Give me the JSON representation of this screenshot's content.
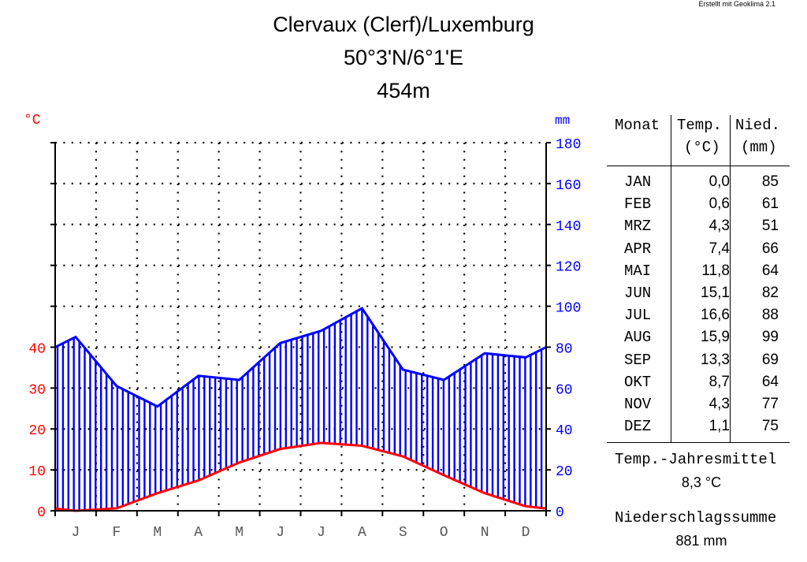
{
  "credit": "Erstellt mit Geoklima 2.1",
  "title": {
    "line1": "Clervaux (Clerf)/Luxemburg",
    "line2": "50°3'N/6°1'E",
    "line3": "454m"
  },
  "chart_data": {
    "type": "line",
    "left_unit": "°C",
    "right_unit": "mm",
    "categories": [
      "J",
      "F",
      "M",
      "A",
      "M",
      "J",
      "J",
      "A",
      "S",
      "O",
      "N",
      "D"
    ],
    "left_ticks": [
      0,
      10,
      20,
      30,
      40
    ],
    "right_ticks": [
      0,
      20,
      40,
      60,
      80,
      100,
      120,
      140,
      160,
      180
    ],
    "left_range": [
      0,
      40
    ],
    "right_range": [
      0,
      180
    ],
    "series": [
      {
        "values": [
          0.0,
          0.6,
          4.3,
          7.4,
          11.8,
          15.1,
          16.6,
          15.9,
          13.3,
          8.7,
          4.3,
          1.1
        ],
        "color": "#ff0000"
      },
      {
        "values": [
          85,
          61,
          51,
          66,
          64,
          82,
          88,
          99,
          69,
          64,
          77,
          75
        ],
        "color": "#0000ff"
      }
    ],
    "grid": true
  },
  "table": {
    "headers": {
      "month": "Monat",
      "temp": "Temp.",
      "precip": "Nied.",
      "temp_unit": "(°C)",
      "precip_unit": "(mm)"
    },
    "rows": [
      {
        "month": "JAN",
        "temp": "0,0",
        "precip": "85"
      },
      {
        "month": "FEB",
        "temp": "0,6",
        "precip": "61"
      },
      {
        "month": "MRZ",
        "temp": "4,3",
        "precip": "51"
      },
      {
        "month": "APR",
        "temp": "7,4",
        "precip": "66"
      },
      {
        "month": "MAI",
        "temp": "11,8",
        "precip": "64"
      },
      {
        "month": "JUN",
        "temp": "15,1",
        "precip": "82"
      },
      {
        "month": "JUL",
        "temp": "16,6",
        "precip": "88"
      },
      {
        "month": "AUG",
        "temp": "15,9",
        "precip": "99"
      },
      {
        "month": "SEP",
        "temp": "13,3",
        "precip": "69"
      },
      {
        "month": "OKT",
        "temp": "8,7",
        "precip": "64"
      },
      {
        "month": "NOV",
        "temp": "4,3",
        "precip": "77"
      },
      {
        "month": "DEZ",
        "temp": "1,1",
        "precip": "75"
      }
    ]
  },
  "summary": {
    "mean_label": "Temp.-Jahresmittel",
    "mean_value": "8,3 °C",
    "sum_label": "Niederschlagssumme",
    "sum_value": "881 mm"
  }
}
